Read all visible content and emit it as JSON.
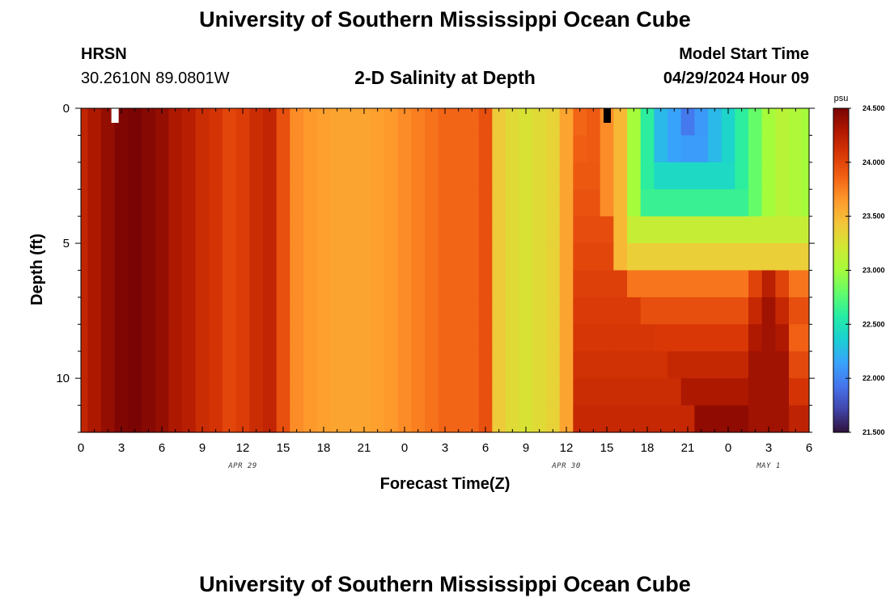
{
  "header": {
    "title": "University of Southern Mississippi Ocean Cube",
    "station": "HRSN",
    "coords": "30.2610N  89.0801W",
    "plot_title": "2-D Salinity at Depth",
    "start_label": "Model Start Time",
    "start_value": "04/29/2024 Hour 09"
  },
  "footer": {
    "title": "University of Southern Mississippi Ocean Cube"
  },
  "colors": {
    "scale": [
      "#30123b",
      "#4145ab",
      "#4675ed",
      "#39a2fc",
      "#1bcfd4",
      "#24eca6",
      "#61fc6c",
      "#a4fc3b",
      "#d1e834",
      "#f3c63a",
      "#fe9b2d",
      "#f36315",
      "#d93806",
      "#b11901",
      "#7a0403"
    ],
    "marker_white": "#ffffff",
    "marker_black": "#000000"
  },
  "chart_data": {
    "type": "heatmap",
    "title": "2-D Salinity at Depth",
    "xlabel": "Forecast Time(Z)",
    "ylabel": "Depth (ft)",
    "x_hours_range": [
      0,
      54
    ],
    "y_range_ft": [
      0,
      12
    ],
    "x_tick_labels": [
      "0",
      "3",
      "6",
      "9",
      "12",
      "15",
      "18",
      "21",
      "0",
      "3",
      "6",
      "9",
      "12",
      "15",
      "18",
      "21",
      "0",
      "3",
      "6"
    ],
    "x_tick_hours": [
      0,
      3,
      6,
      9,
      12,
      15,
      18,
      21,
      24,
      27,
      30,
      33,
      36,
      39,
      42,
      45,
      48,
      51,
      54
    ],
    "date_labels": [
      {
        "text": "APR 29",
        "hour": 12
      },
      {
        "text": "APR 30",
        "hour": 36
      },
      {
        "text": "MAY 1",
        "hour": 51
      }
    ],
    "y_tick_labels": [
      "0",
      "5",
      "10"
    ],
    "y_tick_values": [
      0,
      5,
      10
    ],
    "colorbar": {
      "unit": "psu",
      "min": 21.5,
      "max": 24.5,
      "labels": [
        "24.500",
        "24.000",
        "23.500",
        "23.000",
        "22.500",
        "22.000",
        "21.500"
      ]
    },
    "grid": {
      "n_time": 55,
      "n_depth": 12,
      "surface_salinity_by_hour": [
        24.2,
        24.3,
        24.4,
        24.48,
        24.5,
        24.45,
        24.4,
        24.3,
        24.25,
        24.15,
        24.1,
        24.0,
        24.05,
        24.15,
        24.2,
        23.95,
        23.7,
        23.65,
        23.62,
        23.6,
        23.6,
        23.6,
        23.62,
        23.65,
        23.7,
        23.75,
        23.8,
        23.85,
        23.85,
        23.85,
        23.95,
        23.4,
        23.3,
        23.25,
        23.3,
        23.35,
        23.6,
        23.8,
        23.9,
        23.7,
        23.5,
        23.0,
        22.6,
        22.25,
        22.15,
        21.95,
        22.1,
        22.25,
        22.4,
        22.6,
        22.8,
        23.0,
        23.1,
        23.05,
        23.0
      ],
      "mixed_layer_end_hour": 37,
      "front_profile": [
        {
          "depth_ft": 0.5,
          "front_hour": 38,
          "fresh_min": 21.8
        },
        {
          "depth_ft": 1.5,
          "front_hour": 38,
          "fresh_min": 22.1
        },
        {
          "depth_ft": 2.5,
          "front_hour": 39,
          "fresh_min": 22.4
        },
        {
          "depth_ft": 3.5,
          "front_hour": 39,
          "fresh_min": 22.6
        },
        {
          "depth_ft": 4.5,
          "front_hour": 40,
          "fresh_min": 23.1
        },
        {
          "depth_ft": 5.5,
          "front_hour": 40,
          "fresh_min": 23.3
        },
        {
          "depth_ft": 6.5,
          "front_hour": 41,
          "fresh_min": 23.7
        },
        {
          "depth_ft": 7.5,
          "front_hour": 42,
          "fresh_min": 23.85
        },
        {
          "depth_ft": 8.5,
          "front_hour": 43,
          "fresh_min": 23.95
        },
        {
          "depth_ft": 9.5,
          "front_hour": 44,
          "fresh_min": 24.05
        },
        {
          "depth_ft": 10.5,
          "front_hour": 45,
          "fresh_min": 24.15
        },
        {
          "depth_ft": 11.5,
          "front_hour": 46,
          "fresh_min": 24.25
        }
      ],
      "markers": [
        {
          "hour": 2.5,
          "depth_ft": 0.3,
          "color": "white"
        },
        {
          "hour": 39,
          "depth_ft": 0.3,
          "color": "black"
        }
      ]
    }
  }
}
